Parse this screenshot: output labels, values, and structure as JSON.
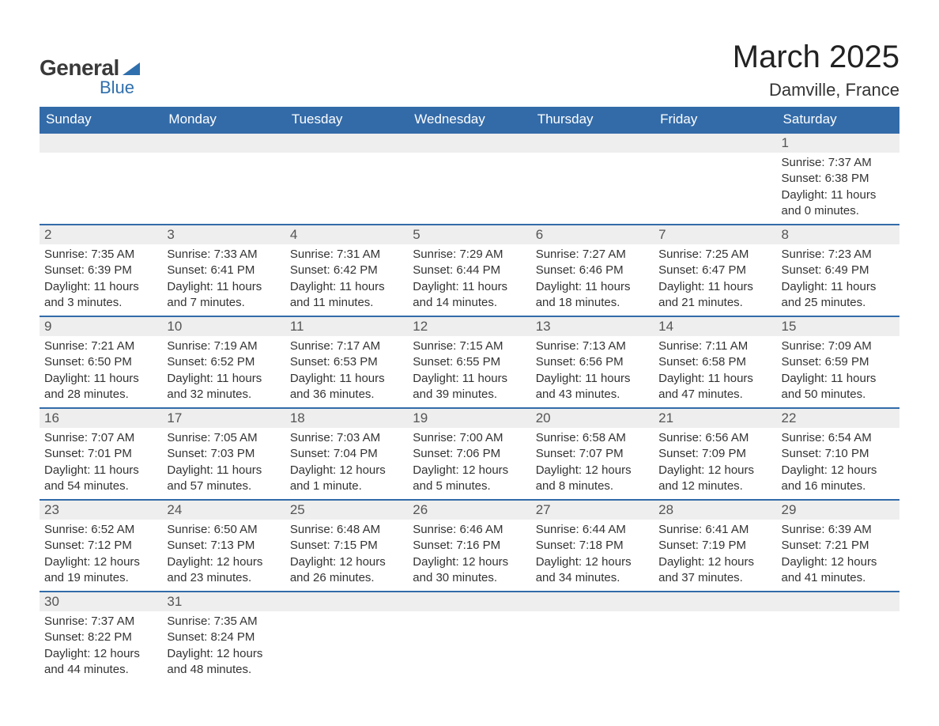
{
  "logo": {
    "text_general": "General",
    "text_blue": "Blue",
    "flag_color": "#2f6fad"
  },
  "title": "March 2025",
  "location": "Damville, France",
  "colors": {
    "header_bg": "#336ba9",
    "header_text": "#ffffff",
    "row_border": "#336ba9",
    "daynum_bg": "#eeeeee",
    "text": "#333333",
    "background": "#ffffff"
  },
  "typography": {
    "title_fontsize": 40,
    "location_fontsize": 22,
    "header_fontsize": 17,
    "daynum_fontsize": 17,
    "data_fontsize": 15
  },
  "day_headers": [
    "Sunday",
    "Monday",
    "Tuesday",
    "Wednesday",
    "Thursday",
    "Friday",
    "Saturday"
  ],
  "weeks": [
    [
      null,
      null,
      null,
      null,
      null,
      null,
      {
        "n": "1",
        "sunrise": "7:37 AM",
        "sunset": "6:38 PM",
        "daylight": "11 hours and 0 minutes."
      }
    ],
    [
      {
        "n": "2",
        "sunrise": "7:35 AM",
        "sunset": "6:39 PM",
        "daylight": "11 hours and 3 minutes."
      },
      {
        "n": "3",
        "sunrise": "7:33 AM",
        "sunset": "6:41 PM",
        "daylight": "11 hours and 7 minutes."
      },
      {
        "n": "4",
        "sunrise": "7:31 AM",
        "sunset": "6:42 PM",
        "daylight": "11 hours and 11 minutes."
      },
      {
        "n": "5",
        "sunrise": "7:29 AM",
        "sunset": "6:44 PM",
        "daylight": "11 hours and 14 minutes."
      },
      {
        "n": "6",
        "sunrise": "7:27 AM",
        "sunset": "6:46 PM",
        "daylight": "11 hours and 18 minutes."
      },
      {
        "n": "7",
        "sunrise": "7:25 AM",
        "sunset": "6:47 PM",
        "daylight": "11 hours and 21 minutes."
      },
      {
        "n": "8",
        "sunrise": "7:23 AM",
        "sunset": "6:49 PM",
        "daylight": "11 hours and 25 minutes."
      }
    ],
    [
      {
        "n": "9",
        "sunrise": "7:21 AM",
        "sunset": "6:50 PM",
        "daylight": "11 hours and 28 minutes."
      },
      {
        "n": "10",
        "sunrise": "7:19 AM",
        "sunset": "6:52 PM",
        "daylight": "11 hours and 32 minutes."
      },
      {
        "n": "11",
        "sunrise": "7:17 AM",
        "sunset": "6:53 PM",
        "daylight": "11 hours and 36 minutes."
      },
      {
        "n": "12",
        "sunrise": "7:15 AM",
        "sunset": "6:55 PM",
        "daylight": "11 hours and 39 minutes."
      },
      {
        "n": "13",
        "sunrise": "7:13 AM",
        "sunset": "6:56 PM",
        "daylight": "11 hours and 43 minutes."
      },
      {
        "n": "14",
        "sunrise": "7:11 AM",
        "sunset": "6:58 PM",
        "daylight": "11 hours and 47 minutes."
      },
      {
        "n": "15",
        "sunrise": "7:09 AM",
        "sunset": "6:59 PM",
        "daylight": "11 hours and 50 minutes."
      }
    ],
    [
      {
        "n": "16",
        "sunrise": "7:07 AM",
        "sunset": "7:01 PM",
        "daylight": "11 hours and 54 minutes."
      },
      {
        "n": "17",
        "sunrise": "7:05 AM",
        "sunset": "7:03 PM",
        "daylight": "11 hours and 57 minutes."
      },
      {
        "n": "18",
        "sunrise": "7:03 AM",
        "sunset": "7:04 PM",
        "daylight": "12 hours and 1 minute."
      },
      {
        "n": "19",
        "sunrise": "7:00 AM",
        "sunset": "7:06 PM",
        "daylight": "12 hours and 5 minutes."
      },
      {
        "n": "20",
        "sunrise": "6:58 AM",
        "sunset": "7:07 PM",
        "daylight": "12 hours and 8 minutes."
      },
      {
        "n": "21",
        "sunrise": "6:56 AM",
        "sunset": "7:09 PM",
        "daylight": "12 hours and 12 minutes."
      },
      {
        "n": "22",
        "sunrise": "6:54 AM",
        "sunset": "7:10 PM",
        "daylight": "12 hours and 16 minutes."
      }
    ],
    [
      {
        "n": "23",
        "sunrise": "6:52 AM",
        "sunset": "7:12 PM",
        "daylight": "12 hours and 19 minutes."
      },
      {
        "n": "24",
        "sunrise": "6:50 AM",
        "sunset": "7:13 PM",
        "daylight": "12 hours and 23 minutes."
      },
      {
        "n": "25",
        "sunrise": "6:48 AM",
        "sunset": "7:15 PM",
        "daylight": "12 hours and 26 minutes."
      },
      {
        "n": "26",
        "sunrise": "6:46 AM",
        "sunset": "7:16 PM",
        "daylight": "12 hours and 30 minutes."
      },
      {
        "n": "27",
        "sunrise": "6:44 AM",
        "sunset": "7:18 PM",
        "daylight": "12 hours and 34 minutes."
      },
      {
        "n": "28",
        "sunrise": "6:41 AM",
        "sunset": "7:19 PM",
        "daylight": "12 hours and 37 minutes."
      },
      {
        "n": "29",
        "sunrise": "6:39 AM",
        "sunset": "7:21 PM",
        "daylight": "12 hours and 41 minutes."
      }
    ],
    [
      {
        "n": "30",
        "sunrise": "7:37 AM",
        "sunset": "8:22 PM",
        "daylight": "12 hours and 44 minutes."
      },
      {
        "n": "31",
        "sunrise": "7:35 AM",
        "sunset": "8:24 PM",
        "daylight": "12 hours and 48 minutes."
      },
      null,
      null,
      null,
      null,
      null
    ]
  ],
  "labels": {
    "sunrise": "Sunrise:",
    "sunset": "Sunset:",
    "daylight": "Daylight:"
  }
}
